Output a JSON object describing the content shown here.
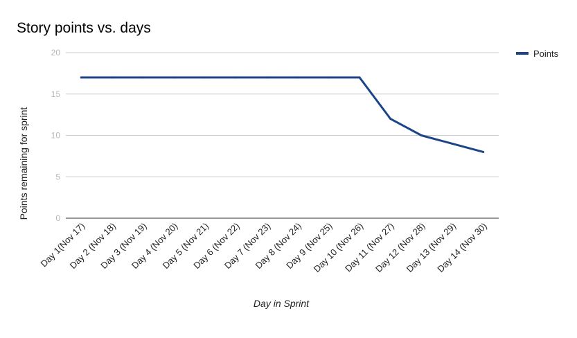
{
  "chart_data": {
    "type": "line",
    "title": "Story points vs. days",
    "xlabel": "Day in Sprint",
    "ylabel": "Points remaining for sprint",
    "categories": [
      "Day 1(Nov 17)",
      "Day 2 (Nov 18)",
      "Day 3 (Nov 19)",
      "Day 4 (Nov 20)",
      "Day 5 (Nov 21)",
      "Day 6 (Nov 22)",
      "Day 7 (Nov 23)",
      "Day 8 (Nov 24)",
      "Day 9 (Nov 25)",
      "Day 10 (Nov 26)",
      "Day 11 (Nov 27)",
      "Day 12 (Nov 28)",
      "Day 13 (Nov 29)",
      "Day 14 (Nov 30)"
    ],
    "series": [
      {
        "name": "Points",
        "color": "#1c4587",
        "values": [
          17,
          17,
          17,
          17,
          17,
          17,
          17,
          17,
          17,
          17,
          12,
          10,
          9,
          8
        ]
      }
    ],
    "ylim": [
      0,
      20
    ],
    "yticks": [
      "0",
      "5",
      "10",
      "15",
      "20"
    ],
    "grid": true,
    "legend": "right"
  }
}
